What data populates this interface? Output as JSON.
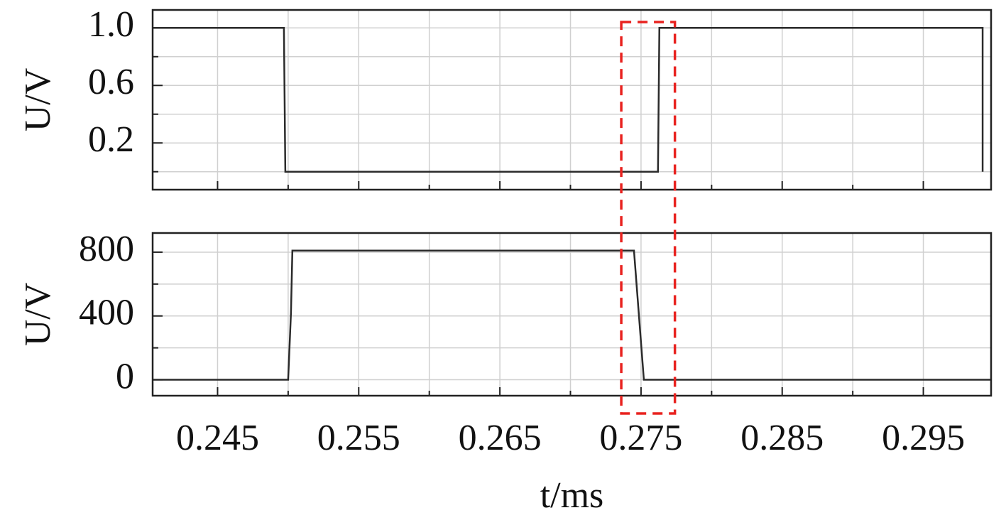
{
  "chart_data": [
    {
      "type": "line",
      "ylabel": "U/V",
      "xlim": [
        0.2404,
        0.2998
      ],
      "ylim": [
        -0.125,
        1.125
      ],
      "yticks": [
        {
          "value": 1,
          "label": "1.0"
        },
        0.6,
        0.2
      ],
      "yminor": [
        0.8,
        0.4,
        0
      ],
      "grid": true,
      "series": [
        {
          "color": "#2b2b2b",
          "x": [
            0.2404,
            0.2497,
            0.2498,
            0.2762,
            0.2763,
            0.2992,
            0.2992
          ],
          "values": [
            1,
            1,
            0,
            0,
            1,
            1,
            0
          ]
        }
      ]
    },
    {
      "type": "line",
      "ylabel": "U/V",
      "xlabel": "t/ms",
      "xlim": [
        0.2404,
        0.2998
      ],
      "ylim": [
        -100,
        920
      ],
      "xticks": [
        0.245,
        0.255,
        0.265,
        0.275,
        0.285,
        0.295
      ],
      "xminor": [
        0.25,
        0.26,
        0.27,
        0.28,
        0.29
      ],
      "yticks": [
        800,
        400,
        0
      ],
      "yminor": [
        600,
        200
      ],
      "grid": true,
      "series": [
        {
          "color": "#2b2b2b",
          "x": [
            0.2404,
            0.25,
            0.2502,
            0.2503,
            0.2745,
            0.2752,
            0.2998
          ],
          "values": [
            0,
            0,
            420,
            810,
            810,
            0,
            0
          ]
        }
      ],
      "highlight": {
        "x": [
          0.2736,
          0.2774
        ],
        "color": "#e8221f"
      }
    }
  ]
}
